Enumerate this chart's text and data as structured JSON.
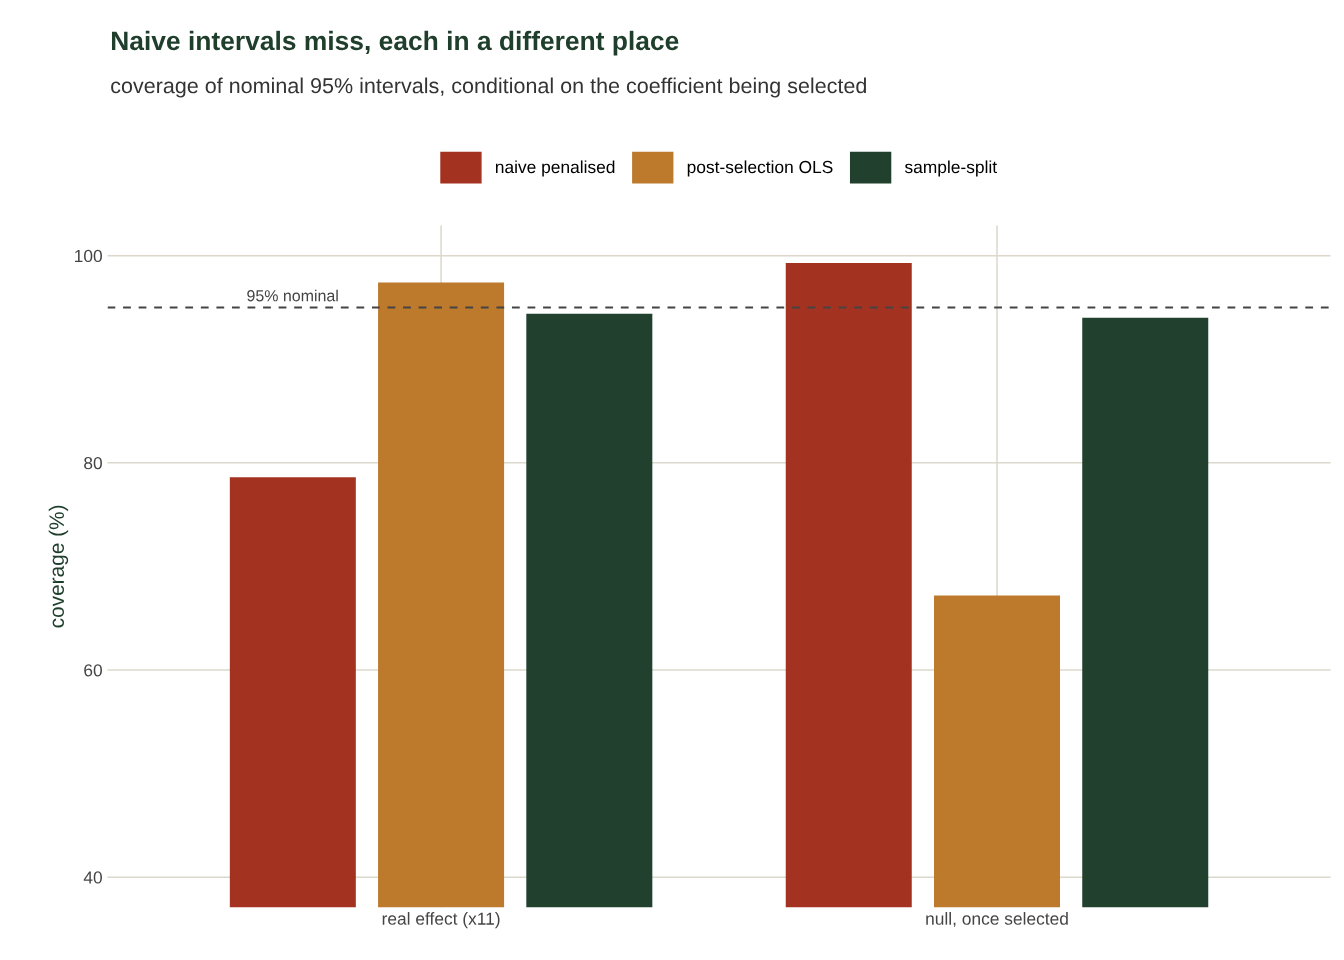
{
  "chart_data": {
    "type": "bar",
    "title": "Naive intervals miss, each in a different place",
    "subtitle": "coverage of nominal 95% intervals, conditional on the coefficient being selected",
    "ylabel": "coverage (%)",
    "categories": [
      "real effect (x11)",
      "null, once selected"
    ],
    "series": [
      {
        "name": "naive penalised",
        "color": "#a33320",
        "values": [
          78.6,
          99.3
        ]
      },
      {
        "name": "post-selection OLS",
        "color": "#bd7a2d",
        "values": [
          97.4,
          67.2
        ]
      },
      {
        "name": "sample-split",
        "color": "#21402e",
        "values": [
          94.4,
          94.0
        ]
      }
    ],
    "ylim": [
      37.1,
      102.9
    ],
    "yticks": [
      40,
      60,
      80,
      100
    ],
    "ref_lines": [
      {
        "axis": "y",
        "value": 95,
        "label": "95% nominal",
        "color": "#444444",
        "line_style": "dashed"
      }
    ],
    "grid": true,
    "legend": "top"
  }
}
